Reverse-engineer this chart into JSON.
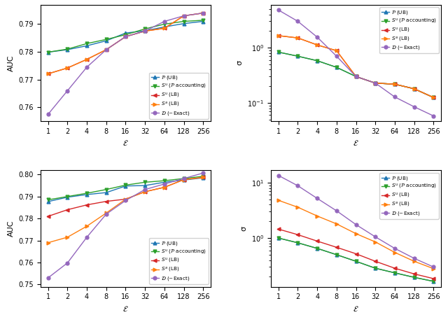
{
  "x": [
    1,
    2,
    4,
    8,
    16,
    32,
    64,
    128,
    256
  ],
  "top_left": {
    "P_UB": [
      0.7799,
      0.7808,
      0.7822,
      0.784,
      0.7868,
      0.7876,
      0.789,
      0.7902,
      0.791
    ],
    "Su_P": [
      0.7799,
      0.781,
      0.783,
      0.7845,
      0.7862,
      0.7883,
      0.79,
      0.791,
      0.7914
    ],
    "Su_LB": [
      0.7721,
      0.7742,
      0.7773,
      0.7808,
      0.7855,
      0.7875,
      0.7885,
      0.793,
      0.794
    ],
    "Sa_LB": [
      0.7721,
      0.7742,
      0.7773,
      0.7808,
      0.7855,
      0.7875,
      0.7885,
      0.793,
      0.794
    ],
    "D_Exact": [
      0.7575,
      0.766,
      0.7745,
      0.7808,
      0.7855,
      0.7875,
      0.791,
      0.793,
      0.794
    ],
    "ylabel": "AUC",
    "ylim": [
      0.755,
      0.797
    ]
  },
  "top_right": {
    "P_UB": [
      0.83,
      0.7,
      0.58,
      0.44,
      0.3,
      0.228,
      0.218,
      0.18,
      0.125
    ],
    "Su_P": [
      0.83,
      0.7,
      0.58,
      0.44,
      0.3,
      0.228,
      0.218,
      0.18,
      0.125
    ],
    "Su_LB": [
      1.65,
      1.5,
      1.12,
      0.88,
      0.3,
      0.228,
      0.218,
      0.18,
      0.125
    ],
    "Sa_LB": [
      1.65,
      1.5,
      1.12,
      0.88,
      0.3,
      0.228,
      0.218,
      0.18,
      0.125
    ],
    "D_Exact": [
      4.8,
      3.0,
      1.55,
      0.7,
      0.3,
      0.228,
      0.128,
      0.085,
      0.058
    ],
    "ylabel": "σ"
  },
  "bot_left": {
    "P_UB": [
      0.7877,
      0.7897,
      0.7909,
      0.7918,
      0.7948,
      0.795,
      0.7965,
      0.7975,
      0.7985
    ],
    "Su_P": [
      0.7885,
      0.79,
      0.7915,
      0.7932,
      0.7952,
      0.7965,
      0.7972,
      0.7982,
      0.7992
    ],
    "Su_LB": [
      0.781,
      0.784,
      0.7862,
      0.7878,
      0.7888,
      0.7922,
      0.7942,
      0.7977,
      0.7987
    ],
    "Sa_LB": [
      0.769,
      0.7715,
      0.7765,
      0.7825,
      0.7888,
      0.7922,
      0.7942,
      0.7977,
      0.7987
    ],
    "D_Exact": [
      0.753,
      0.7598,
      0.7715,
      0.782,
      0.7882,
      0.7932,
      0.7957,
      0.7982,
      0.8007
    ],
    "ylabel": "AUC",
    "ylim": [
      0.75,
      0.802
    ]
  },
  "bot_right": {
    "P_UB": [
      1.0,
      0.82,
      0.65,
      0.5,
      0.38,
      0.285,
      0.235,
      0.195,
      0.165
    ],
    "Su_P": [
      1.0,
      0.82,
      0.65,
      0.5,
      0.38,
      0.285,
      0.235,
      0.195,
      0.165
    ],
    "Su_LB": [
      1.45,
      1.15,
      0.88,
      0.68,
      0.52,
      0.38,
      0.285,
      0.225,
      0.185
    ],
    "Sa_LB": [
      4.8,
      3.6,
      2.5,
      1.8,
      1.2,
      0.85,
      0.55,
      0.38,
      0.28
    ],
    "D_Exact": [
      13.5,
      8.8,
      5.2,
      3.1,
      1.75,
      1.05,
      0.65,
      0.43,
      0.3
    ],
    "ylabel": "σ"
  },
  "colors": {
    "P_UB": "#1f77b4",
    "Su_P": "#2ca02c",
    "Su_LB": "#d62728",
    "Sa_LB": "#ff7f0e",
    "D_Exact": "#9467bd"
  },
  "markers": {
    "P_UB": "^",
    "Su_P": "v",
    "Su_LB": "<",
    "Sa_LB": ">",
    "D_Exact": "o"
  },
  "labels": {
    "P_UB": "$\\mathcal{P}$ (UB)",
    "Su_P": "$\\mathit{S}^{u}$ ($\\mathcal{P}$ accounting)",
    "Su_LB": "$\\mathit{S}^{u}$ (LB)",
    "Sa_LB": "$\\mathit{S}^{a}$ (LB)",
    "D_Exact": "$\\mathcal{D}$ (~Exact)"
  },
  "xlabel": "$\\mathcal{E}$",
  "x_ticks": [
    1,
    2,
    4,
    8,
    16,
    32,
    64,
    128,
    256
  ]
}
